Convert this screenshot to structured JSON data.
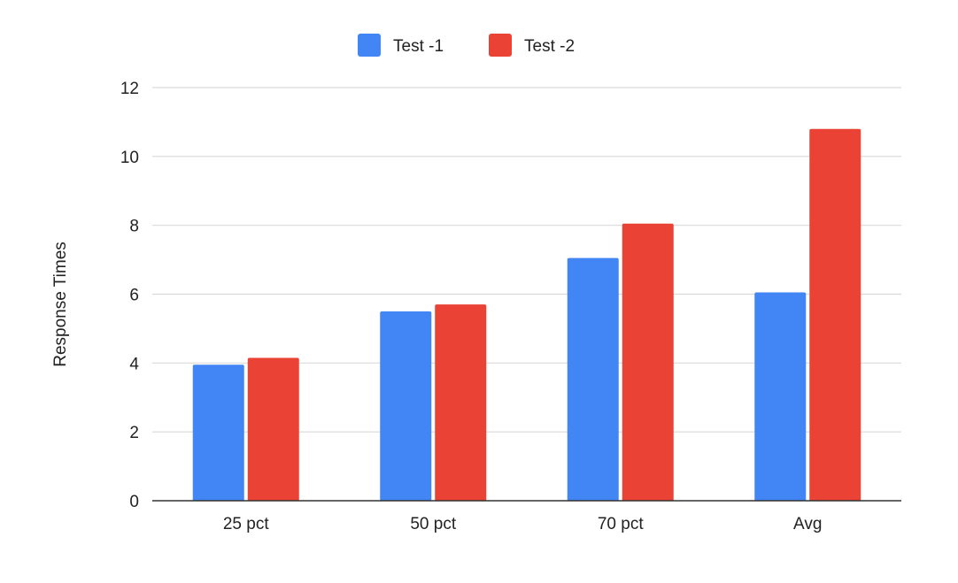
{
  "chart_data": {
    "type": "bar",
    "categories": [
      "25 pct",
      "50 pct",
      "70 pct",
      "Avg"
    ],
    "series": [
      {
        "name": "Test -1",
        "color": "#4285F4",
        "values": [
          3.95,
          5.5,
          7.05,
          6.05
        ]
      },
      {
        "name": "Test -2",
        "color": "#EA4335",
        "values": [
          4.15,
          5.7,
          8.05,
          10.8
        ]
      }
    ],
    "title": "",
    "xlabel": "",
    "ylabel": "Response Times",
    "ylim": [
      0,
      12
    ],
    "yticks": [
      0,
      2,
      4,
      6,
      8,
      10,
      12
    ],
    "grid": true,
    "legend_position": "top-center"
  }
}
